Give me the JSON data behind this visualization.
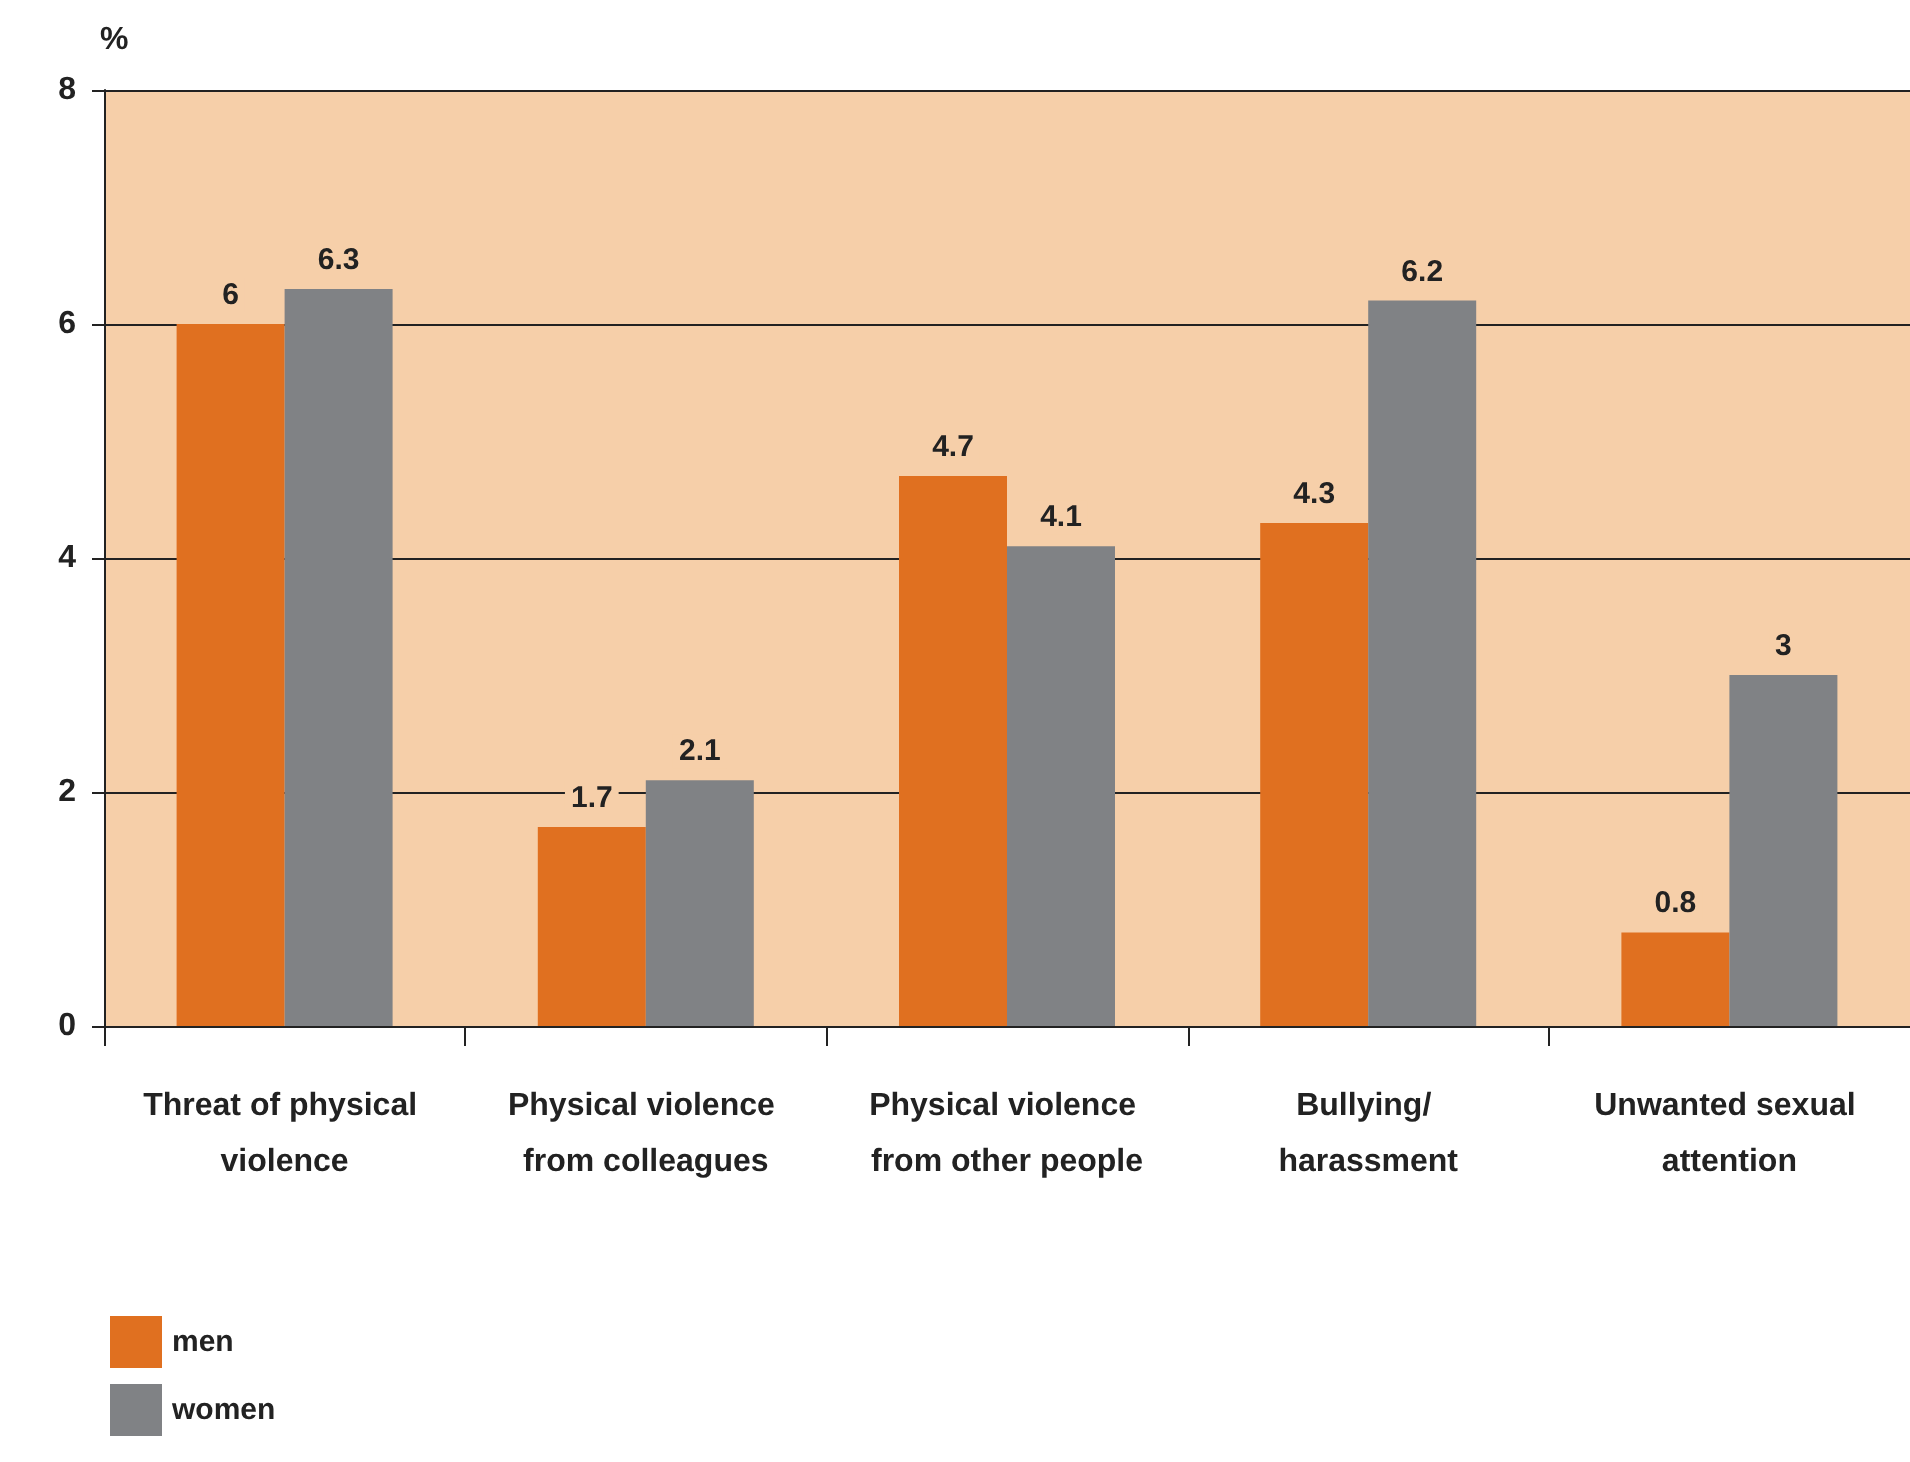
{
  "chart_data": {
    "type": "bar",
    "ylabel": "%",
    "categories": [
      "Threat of physical violence",
      "Physical violence from colleagues",
      "Physical violence from other people",
      "Bullying/ harassment",
      "Unwanted sexual attention"
    ],
    "series": [
      {
        "name": "men",
        "color": "#e07020",
        "values": [
          6,
          1.7,
          4.7,
          4.3,
          0.8
        ]
      },
      {
        "name": "women",
        "color": "#808285",
        "values": [
          6.3,
          2.1,
          4.1,
          6.2,
          3
        ]
      }
    ],
    "ylim": [
      0,
      8
    ],
    "yticks": [
      0,
      2,
      4,
      6,
      8
    ],
    "grid": "y",
    "legend": "bottom left",
    "data_labels": true
  }
}
